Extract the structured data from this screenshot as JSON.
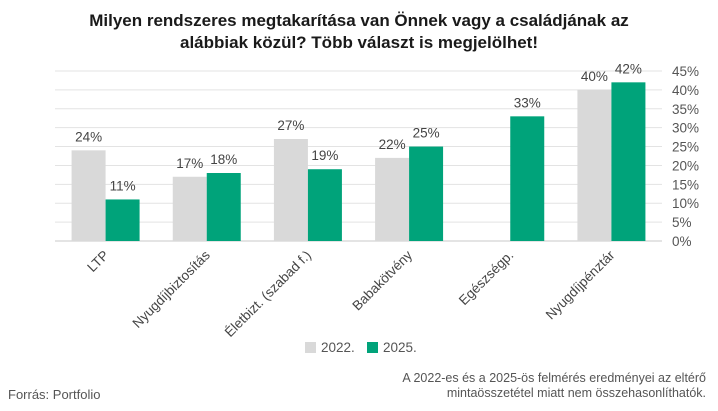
{
  "title_line1": "Milyen rendszeres megtakarítása van Önnek vagy a családjának az",
  "title_line2": "alábbiak közül? Több választ is megjelölhet!",
  "source": "Forrás: Portfolio",
  "note_line1": "A 2022-es és a 2025-ös felmérés eredményei az eltérő",
  "note_line2": "mintaösszetétel miatt nem összehasonlíthatók.",
  "colors": {
    "s2022": "#d9d9d9",
    "s2025": "#00a37a"
  },
  "chart_data": {
    "type": "bar",
    "title": "Milyen rendszeres megtakarítása van Önnek vagy a családjának az alábbiak közül? Több választ is megjelölhet!",
    "categories": [
      "LTP",
      "Nyugdíjbiztosítás",
      "Életbizt. (szabad f.)",
      "Babakötvény",
      "Egészségp.",
      "Nyugdíjpénztár"
    ],
    "series": [
      {
        "name": "2022.",
        "values": [
          24,
          17,
          27,
          22,
          null,
          40
        ],
        "labels": [
          "24%",
          "17%",
          "27%",
          "22%",
          "",
          "40%"
        ]
      },
      {
        "name": "2025.",
        "values": [
          11,
          18,
          19,
          25,
          33,
          42
        ],
        "labels": [
          "11%",
          "18%",
          "19%",
          "25%",
          "33%",
          "42%"
        ]
      }
    ],
    "ylim": [
      0,
      45
    ],
    "yticks": [
      "0%",
      "5%",
      "10%",
      "15%",
      "20%",
      "25%",
      "30%",
      "35%",
      "40%",
      "45%"
    ],
    "legend_position": "bottom",
    "grid": true
  }
}
